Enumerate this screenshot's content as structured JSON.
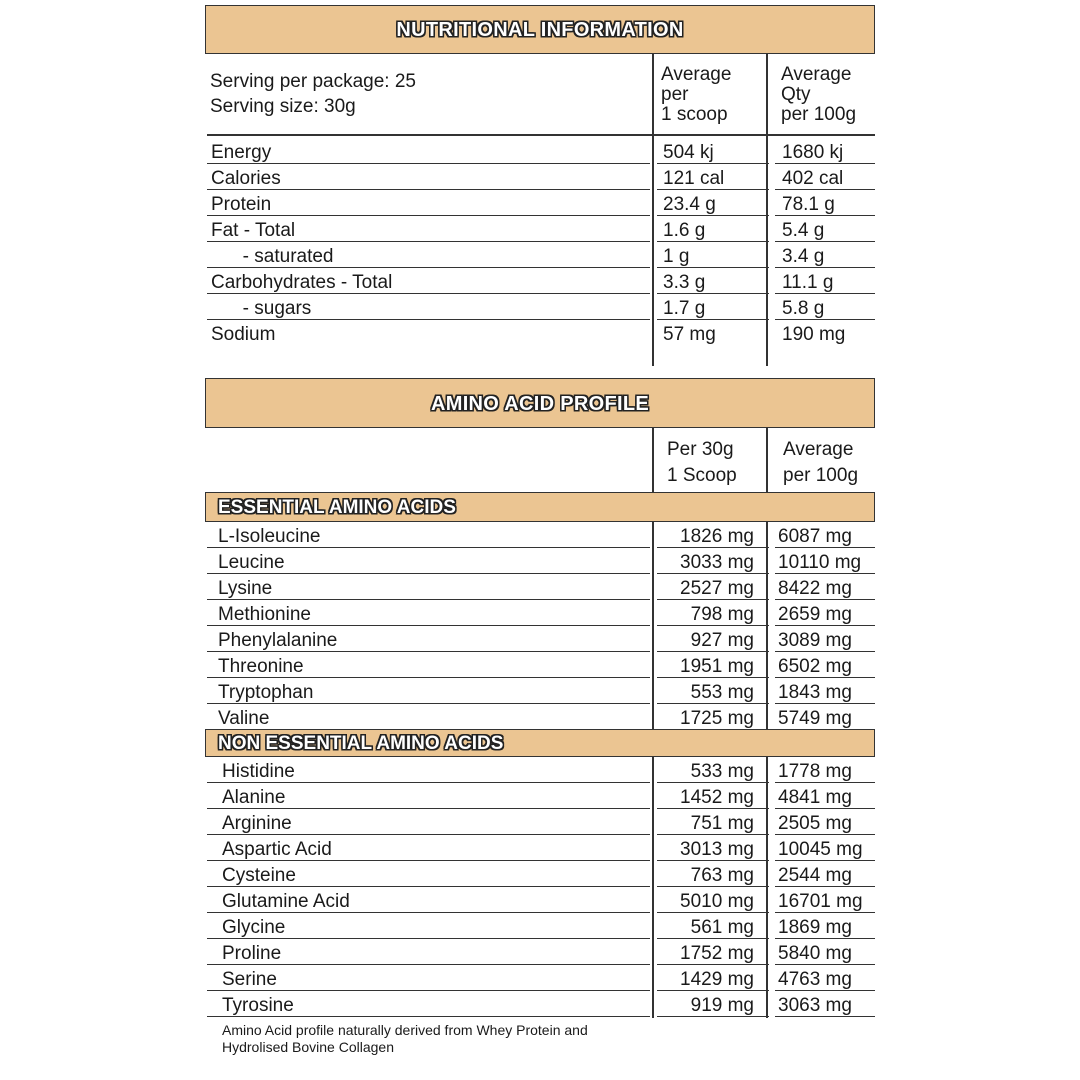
{
  "nutrition": {
    "title": "NUTRITIONAL INFORMATION",
    "serving_per_package": "Serving per package: 25",
    "serving_size": "Serving size: 30g",
    "col2_header": [
      "Average",
      "per",
      "1 scoop"
    ],
    "col3_header": [
      "Average",
      "Qty",
      "per 100g"
    ],
    "rows": [
      {
        "name": "Energy",
        "per_serve": "504 kj",
        "per_100g": "1680 kj"
      },
      {
        "name": "Calories",
        "per_serve": "121 cal",
        "per_100g": "402 cal"
      },
      {
        "name": "Protein",
        "per_serve": "23.4 g",
        "per_100g": "78.1 g"
      },
      {
        "name": "Fat - Total",
        "per_serve": "1.6 g",
        "per_100g": "5.4 g"
      },
      {
        "name": "      - saturated",
        "per_serve": "1 g",
        "per_100g": "3.4 g"
      },
      {
        "name": "Carbohydrates - Total",
        "per_serve": "3.3 g",
        "per_100g": "11.1 g"
      },
      {
        "name": "      - sugars",
        "per_serve": "1.7 g",
        "per_100g": "5.8 g"
      },
      {
        "name": "Sodium",
        "per_serve": "57 mg",
        "per_100g": "190 mg"
      }
    ]
  },
  "amino": {
    "title": "AMINO ACID PROFILE",
    "col2_header": [
      "Per 30g",
      "1 Scoop"
    ],
    "col3_header": [
      "Average",
      "per 100g"
    ],
    "essential_title": "ESSENTIAL AMINO ACIDS",
    "essential": [
      {
        "name": "L-Isoleucine",
        "per_serve": "1826 mg",
        "per_100g": "6087 mg"
      },
      {
        "name": "Leucine",
        "per_serve": "3033 mg",
        "per_100g": "10110 mg"
      },
      {
        "name": "Lysine",
        "per_serve": "2527 mg",
        "per_100g": "8422 mg"
      },
      {
        "name": "Methionine",
        "per_serve": "798 mg",
        "per_100g": "2659 mg"
      },
      {
        "name": "Phenylalanine",
        "per_serve": "927 mg",
        "per_100g": "3089 mg"
      },
      {
        "name": "Threonine",
        "per_serve": "1951 mg",
        "per_100g": "6502 mg"
      },
      {
        "name": "Tryptophan",
        "per_serve": "553 mg",
        "per_100g": "1843 mg"
      },
      {
        "name": "Valine",
        "per_serve": "1725 mg",
        "per_100g": "5749 mg"
      }
    ],
    "non_essential_title": "NON ESSENTIAL AMINO ACIDS",
    "non_essential": [
      {
        "name": "Histidine",
        "per_serve": "533 mg",
        "per_100g": "1778 mg"
      },
      {
        "name": "Alanine",
        "per_serve": "1452 mg",
        "per_100g": "4841 mg"
      },
      {
        "name": "Arginine",
        "per_serve": "751 mg",
        "per_100g": "2505 mg"
      },
      {
        "name": "Aspartic Acid",
        "per_serve": "3013 mg",
        "per_100g": "10045 mg"
      },
      {
        "name": "Cysteine",
        "per_serve": "763 mg",
        "per_100g": "2544 mg"
      },
      {
        "name": "Glutamine Acid",
        "per_serve": "5010 mg",
        "per_100g": "16701 mg"
      },
      {
        "name": "Glycine",
        "per_serve": "561 mg",
        "per_100g": "1869 mg"
      },
      {
        "name": "Proline",
        "per_serve": "1752 mg",
        "per_100g": "5840 mg"
      },
      {
        "name": "Serine",
        "per_serve": "1429 mg",
        "per_100g": "4763 mg"
      },
      {
        "name": "Tyrosine",
        "per_serve": "919 mg",
        "per_100g": "3063 mg"
      }
    ],
    "footnote": [
      "Amino Acid profile naturally derived from Whey Protein and",
      "Hydrolised Bovine Collagen"
    ]
  },
  "colors": {
    "band": "#ebc592",
    "line": "#333333"
  }
}
